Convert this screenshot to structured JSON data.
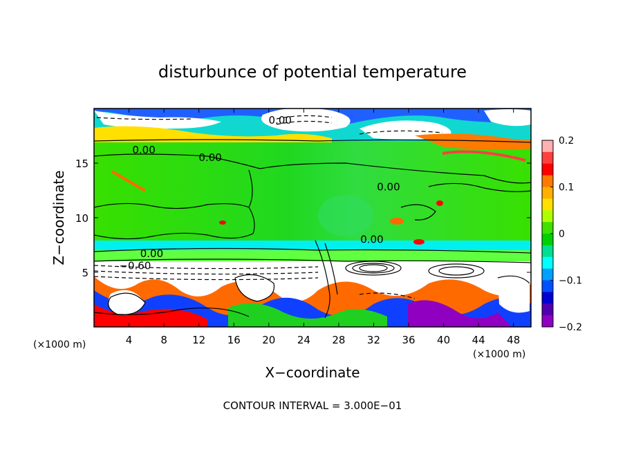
{
  "chart_data": {
    "type": "heatmap",
    "title": "disturbunce of potential temperature",
    "xlabel": "X−coordinate",
    "ylabel": "Z−coordinate",
    "x_unit_left": "(×1000 m)",
    "x_unit_right": "(×1000 m)",
    "xlim": [
      0,
      50
    ],
    "ylim": [
      0,
      20
    ],
    "x_ticks": [
      4,
      8,
      12,
      16,
      20,
      24,
      28,
      32,
      36,
      40,
      44,
      48
    ],
    "x_tick_labels": [
      "4",
      "8",
      "12",
      "16",
      "20",
      "24",
      "28",
      "32",
      "36",
      "40",
      "44",
      "48"
    ],
    "y_ticks": [
      5,
      10,
      15
    ],
    "y_tick_labels": [
      "5",
      "10",
      "15"
    ],
    "colorbar": {
      "range": [
        -0.2,
        0.2
      ],
      "ticks": [
        0.2,
        0.1,
        0,
        -0.1,
        -0.2
      ],
      "tick_labels": [
        "0.2",
        "0.1",
        "0",
        "−0.1",
        "−0.2"
      ],
      "colors": [
        "#ffb0b0",
        "#ff4040",
        "#ff0000",
        "#ff7a00",
        "#ffb000",
        "#ffe000",
        "#b0ff00",
        "#40e000",
        "#00d000",
        "#00e090",
        "#00ffff",
        "#00a0ff",
        "#0050ff",
        "#0000d0",
        "#5000b0",
        "#9000c0"
      ]
    },
    "contour_labels": [
      {
        "text": "0.00",
        "x": 21.3,
        "y": 18.6
      },
      {
        "text": "0.00",
        "x": 5.7,
        "y": 15.9
      },
      {
        "text": "0.00",
        "x": 13.3,
        "y": 15.2
      },
      {
        "text": "0.00",
        "x": 33.7,
        "y": 12.5
      },
      {
        "text": "0.00",
        "x": 31.8,
        "y": 7.7
      },
      {
        "text": "0.00",
        "x": 6.6,
        "y": 6.4
      },
      {
        "text": "−0.60",
        "x": 4.7,
        "y": 5.3
      }
    ],
    "contour_interval_label": "CONTOUR INTERVAL = 3.000E−01",
    "grid": false,
    "legend": "right"
  }
}
